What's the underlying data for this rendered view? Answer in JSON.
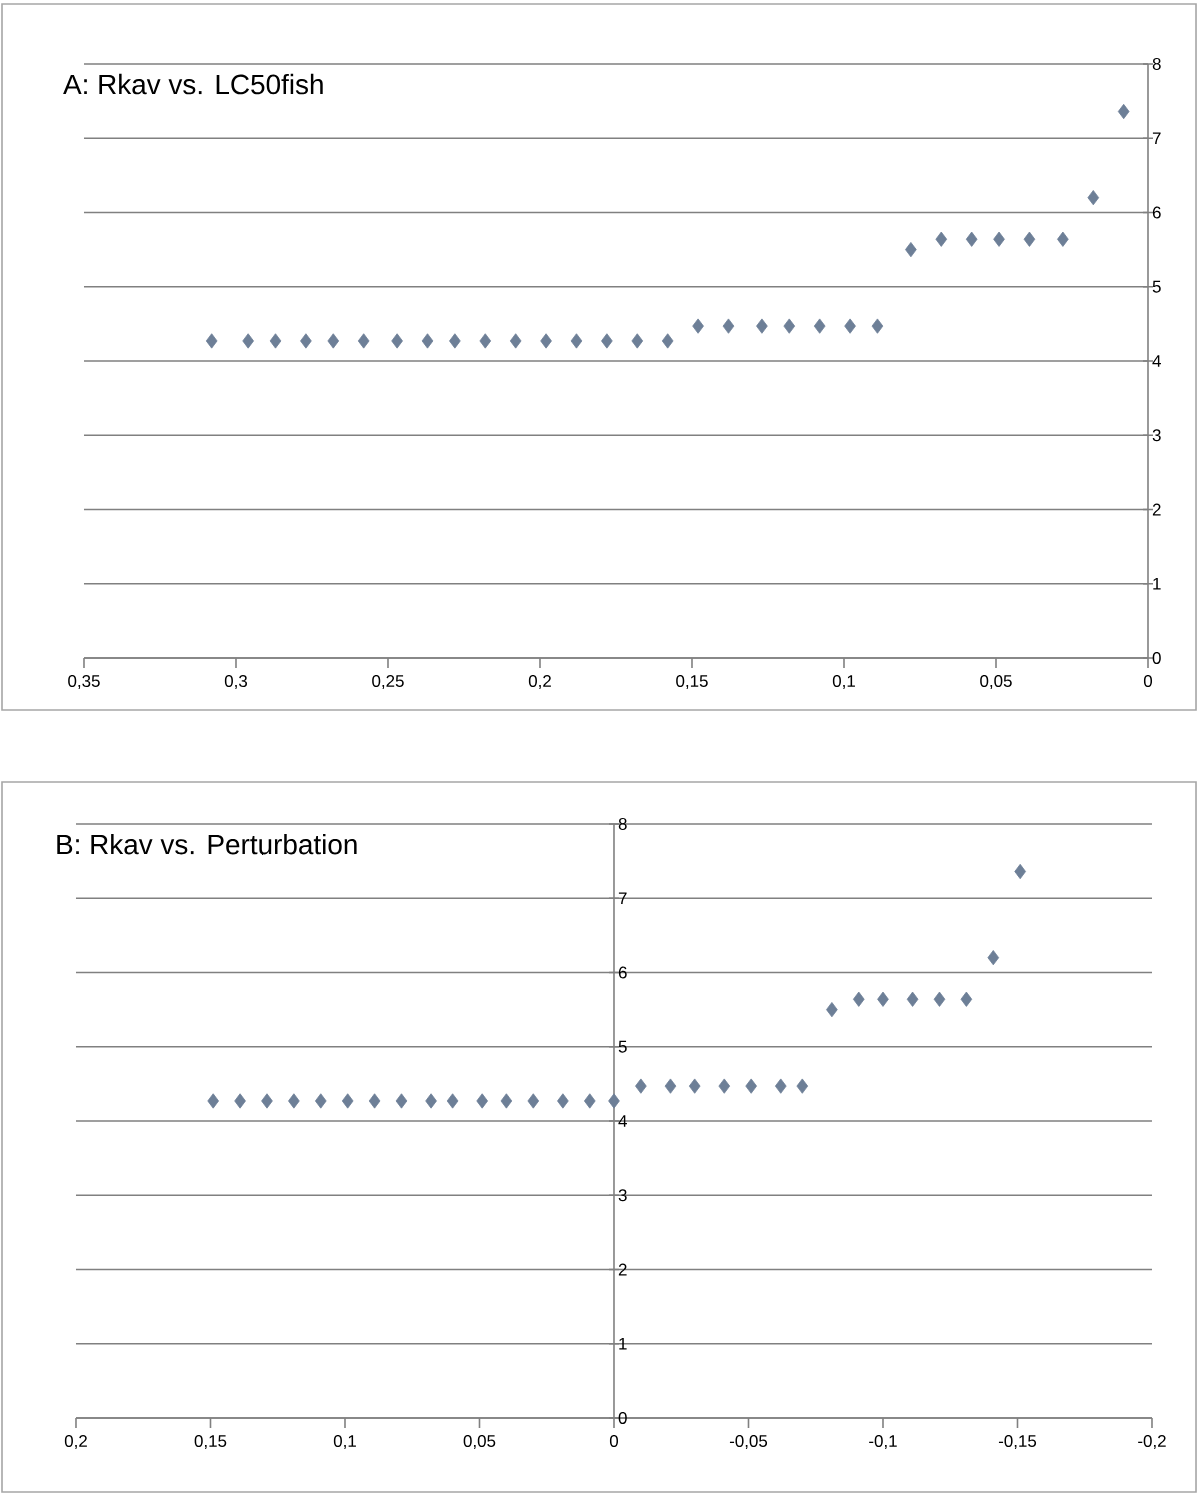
{
  "chart_data": [
    {
      "type": "scatter",
      "title": "A: Rkav vs. LC50fish",
      "marker": "diamond",
      "grid": "y",
      "xlim": [
        0.35,
        0
      ],
      "ylim": [
        0,
        8
      ],
      "xticks": [
        {
          "value": 0.35,
          "label": "0,35"
        },
        {
          "value": 0.3,
          "label": "0,3"
        },
        {
          "value": 0.25,
          "label": "0,25"
        },
        {
          "value": 0.2,
          "label": "0,2"
        },
        {
          "value": 0.15,
          "label": "0,15"
        },
        {
          "value": 0.1,
          "label": "0,1"
        },
        {
          "value": 0.05,
          "label": "0,05"
        },
        0
      ],
      "yticks": [
        0,
        1,
        2,
        3,
        4,
        5,
        6,
        7,
        8
      ],
      "series": [
        {
          "color": "#6d7f97",
          "x": [
            0.308,
            0.296,
            0.287,
            0.277,
            0.268,
            0.258,
            0.247,
            0.237,
            0.228,
            0.218,
            0.208,
            0.198,
            0.188,
            0.178,
            0.168,
            0.158,
            0.148,
            0.138,
            0.127,
            0.118,
            0.108,
            0.098,
            0.089,
            0.078,
            0.068,
            0.058,
            0.049,
            0.039,
            0.028,
            0.018,
            0.008
          ],
          "values": [
            4.27,
            4.27,
            4.27,
            4.27,
            4.27,
            4.27,
            4.27,
            4.27,
            4.27,
            4.27,
            4.27,
            4.27,
            4.27,
            4.27,
            4.27,
            4.27,
            4.47,
            4.47,
            4.47,
            4.47,
            4.47,
            4.47,
            4.47,
            5.5,
            5.64,
            5.64,
            5.64,
            5.64,
            5.64,
            6.2,
            7.36
          ]
        }
      ]
    },
    {
      "type": "scatter",
      "title": "B: Rkav vs. Perturbation",
      "marker": "diamond",
      "grid": "y",
      "xlim": [
        0.2,
        -0.2
      ],
      "ylim": [
        0,
        8
      ],
      "xticks": [
        {
          "value": 0.2,
          "label": "0,2"
        },
        {
          "value": 0.15,
          "label": "0,15"
        },
        {
          "value": 0.1,
          "label": "0,1"
        },
        {
          "value": 0.05,
          "label": "0,05"
        },
        0,
        {
          "value": -0.05,
          "label": "-0,05"
        },
        {
          "value": -0.1,
          "label": "-0,1"
        },
        {
          "value": -0.15,
          "label": "-0,15"
        },
        {
          "value": -0.2,
          "label": "-0,2"
        }
      ],
      "yticks": [
        0,
        1,
        2,
        3,
        4,
        5,
        6,
        7,
        8
      ],
      "series": [
        {
          "color": "#6d7f97",
          "x": [
            0.149,
            0.139,
            0.129,
            0.119,
            0.109,
            0.099,
            0.089,
            0.079,
            0.068,
            0.06,
            0.049,
            0.04,
            0.03,
            0.019,
            0.009,
            0,
            -0.01,
            -0.021,
            -0.03,
            -0.041,
            -0.051,
            -0.062,
            -0.07,
            -0.081,
            -0.091,
            -0.1,
            -0.111,
            -0.121,
            -0.131,
            -0.141,
            -0.151
          ],
          "values": [
            4.27,
            4.27,
            4.27,
            4.27,
            4.27,
            4.27,
            4.27,
            4.27,
            4.27,
            4.27,
            4.27,
            4.27,
            4.27,
            4.27,
            4.27,
            4.27,
            4.47,
            4.47,
            4.47,
            4.47,
            4.47,
            4.47,
            4.47,
            5.5,
            5.64,
            5.64,
            5.64,
            5.64,
            5.64,
            6.2,
            7.36
          ]
        }
      ]
    }
  ]
}
